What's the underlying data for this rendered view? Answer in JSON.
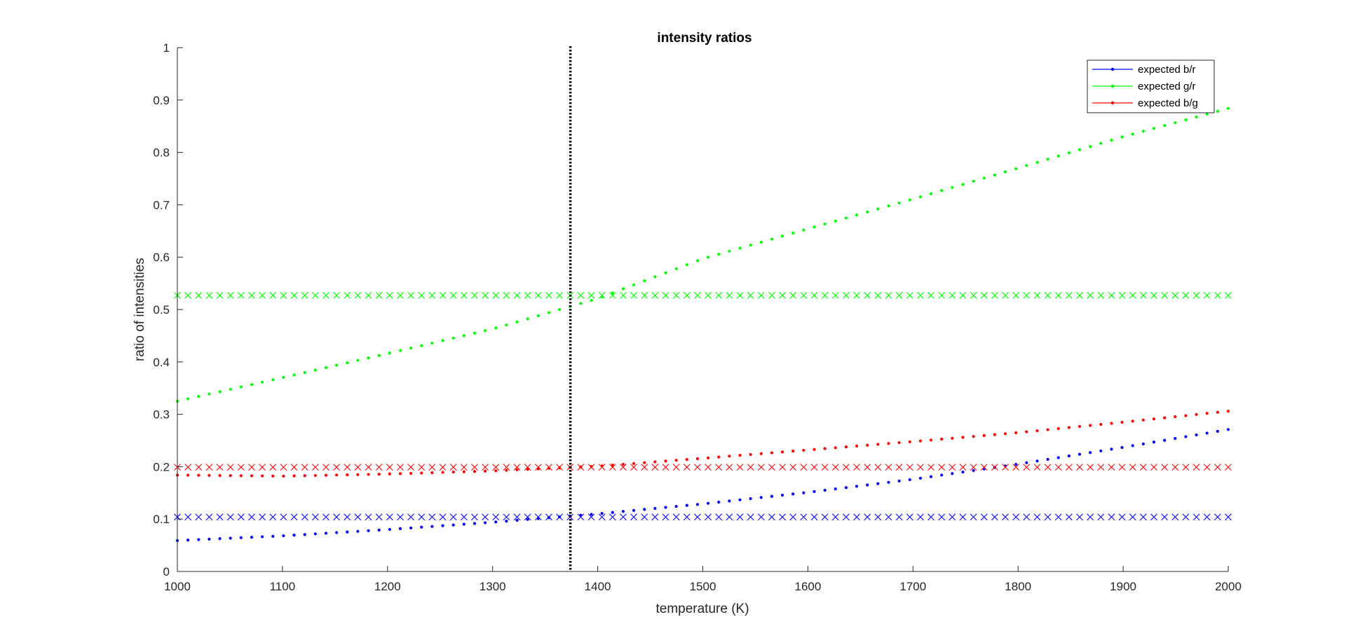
{
  "chart_data": {
    "type": "scatter",
    "title": "intensity ratios",
    "xlabel": "temperature (K)",
    "ylabel": "ratio of intensities",
    "xlim": [
      1000,
      2000
    ],
    "ylim": [
      0,
      1
    ],
    "grid": false,
    "legend_position": "top-right",
    "x_ticks": [
      "1000",
      "1100",
      "1200",
      "1300",
      "1400",
      "1500",
      "1600",
      "1700",
      "1800",
      "1900",
      "2000"
    ],
    "y_ticks": [
      "0",
      "0.1",
      "0.2",
      "0.3",
      "0.4",
      "0.5",
      "0.6",
      "0.7",
      "0.8",
      "0.9",
      "1"
    ],
    "series": [
      {
        "name": "expected b/r",
        "color": "#0000ff",
        "marker": "dot",
        "x": [
          1000,
          1100,
          1200,
          1300,
          1400,
          1500,
          1600,
          1700,
          1800,
          1900,
          2000
        ],
        "y": [
          0.059,
          0.068,
          0.08,
          0.094,
          0.11,
          0.129,
          0.151,
          0.176,
          0.205,
          0.237,
          0.271
        ]
      },
      {
        "name": "expected g/r",
        "color": "#00ff00",
        "marker": "dot",
        "x": [
          1000,
          1100,
          1200,
          1300,
          1400,
          1500,
          1600,
          1700,
          1800,
          1900,
          2000
        ],
        "y": [
          0.325,
          0.37,
          0.416,
          0.463,
          0.521,
          0.597,
          0.654,
          0.711,
          0.77,
          0.83,
          0.884
        ]
      },
      {
        "name": "expected b/g",
        "color": "#ff0000",
        "marker": "dot",
        "x": [
          1000,
          1100,
          1200,
          1300,
          1400,
          1500,
          1600,
          1700,
          1800,
          1900,
          2000
        ],
        "y": [
          0.184,
          0.182,
          0.186,
          0.192,
          0.201,
          0.216,
          0.232,
          0.248,
          0.265,
          0.285,
          0.306
        ]
      },
      {
        "color": "#0000ff",
        "marker": "x",
        "x": [
          1000,
          2000
        ],
        "y": [
          0.104,
          0.104
        ]
      },
      {
        "color": "#00ff00",
        "marker": "x",
        "x": [
          1000,
          2000
        ],
        "y": [
          0.527,
          0.527
        ]
      },
      {
        "color": "#ff0000",
        "marker": "x",
        "x": [
          1000,
          2000
        ],
        "y": [
          0.199,
          0.199
        ]
      }
    ],
    "reference_line": {
      "x": 1374,
      "color": "#000000",
      "style": "dotted"
    }
  }
}
